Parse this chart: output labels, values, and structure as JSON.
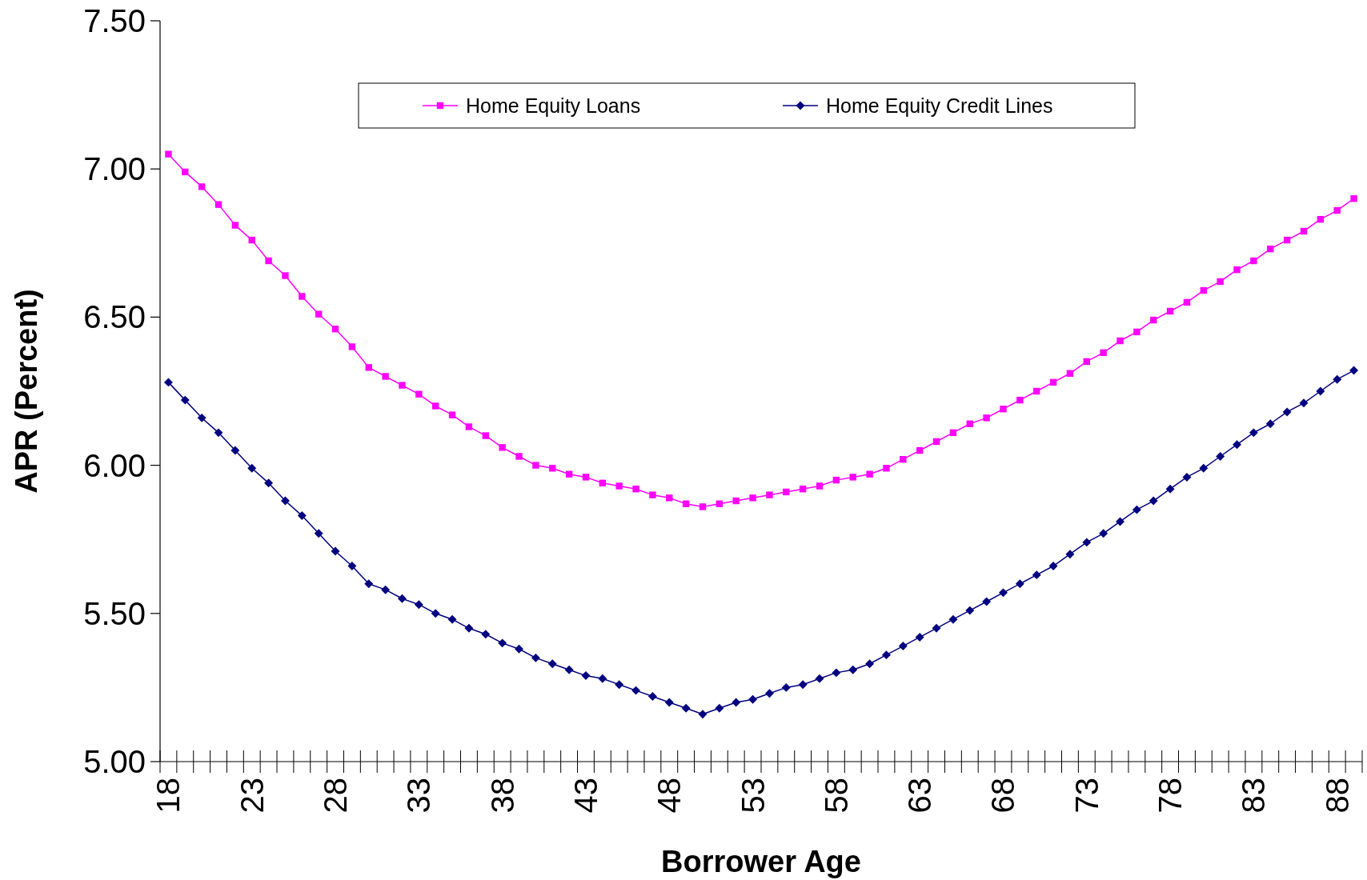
{
  "chart_data": {
    "type": "line",
    "xlabel": "Borrower Age",
    "ylabel": "APR (Percent)",
    "categories": [
      "18",
      null,
      null,
      null,
      null,
      "23",
      null,
      null,
      null,
      null,
      "28",
      null,
      null,
      null,
      null,
      "33",
      null,
      null,
      null,
      null,
      "38",
      null,
      null,
      null,
      null,
      "43",
      null,
      null,
      null,
      null,
      "48",
      null,
      null,
      null,
      null,
      "53",
      null,
      null,
      null,
      null,
      "58",
      null,
      null,
      null,
      null,
      "63",
      null,
      null,
      null,
      null,
      "68",
      null,
      null,
      null,
      null,
      "73",
      null,
      null,
      null,
      null,
      "78",
      null,
      null,
      null,
      null,
      "83",
      null,
      null,
      null,
      null,
      "88",
      null
    ],
    "ylim": [
      5,
      7.5
    ],
    "yticks": [
      {
        "value": 5,
        "label": "5.00"
      },
      {
        "value": 5.5,
        "label": "5.50"
      },
      {
        "value": 6,
        "label": "6.00"
      },
      {
        "value": 6.5,
        "label": "6.50"
      },
      {
        "value": 7,
        "label": "7.00"
      },
      {
        "value": 7.5,
        "label": "7.50"
      }
    ],
    "legend": "top",
    "grid": false,
    "series": [
      {
        "name": "Home Equity Loans",
        "color": "#ff00ff",
        "marker": "square",
        "values": [
          7.05,
          6.99,
          6.94,
          6.88,
          6.81,
          6.76,
          6.69,
          6.64,
          6.57,
          6.51,
          6.46,
          6.4,
          6.33,
          6.3,
          6.27,
          6.24,
          6.2,
          6.17,
          6.13,
          6.1,
          6.06,
          6.03,
          6.0,
          5.99,
          5.97,
          5.96,
          5.94,
          5.93,
          5.92,
          5.9,
          5.89,
          5.87,
          5.86,
          5.87,
          5.88,
          5.89,
          5.9,
          5.91,
          5.92,
          5.93,
          5.95,
          5.96,
          5.97,
          5.99,
          6.02,
          6.05,
          6.08,
          6.11,
          6.14,
          6.16,
          6.19,
          6.22,
          6.25,
          6.28,
          6.31,
          6.35,
          6.38,
          6.42,
          6.45,
          6.49,
          6.52,
          6.55,
          6.59,
          6.62,
          6.66,
          6.69,
          6.73,
          6.76,
          6.79,
          6.83,
          6.86,
          6.9
        ]
      },
      {
        "name": "Home Equity Credit Lines",
        "color": "#000080",
        "marker": "diamond",
        "values": [
          6.28,
          6.22,
          6.16,
          6.11,
          6.05,
          5.99,
          5.94,
          5.88,
          5.83,
          5.77,
          5.71,
          5.66,
          5.6,
          5.58,
          5.55,
          5.53,
          5.5,
          5.48,
          5.45,
          5.43,
          5.4,
          5.38,
          5.35,
          5.33,
          5.31,
          5.29,
          5.28,
          5.26,
          5.24,
          5.22,
          5.2,
          5.18,
          5.16,
          5.18,
          5.2,
          5.21,
          5.23,
          5.25,
          5.26,
          5.28,
          5.3,
          5.31,
          5.33,
          5.36,
          5.39,
          5.42,
          5.45,
          5.48,
          5.51,
          5.54,
          5.57,
          5.6,
          5.63,
          5.66,
          5.7,
          5.74,
          5.77,
          5.81,
          5.85,
          5.88,
          5.92,
          5.96,
          5.99,
          6.03,
          6.07,
          6.11,
          6.14,
          6.18,
          6.21,
          6.25,
          6.29,
          6.32
        ]
      }
    ]
  }
}
